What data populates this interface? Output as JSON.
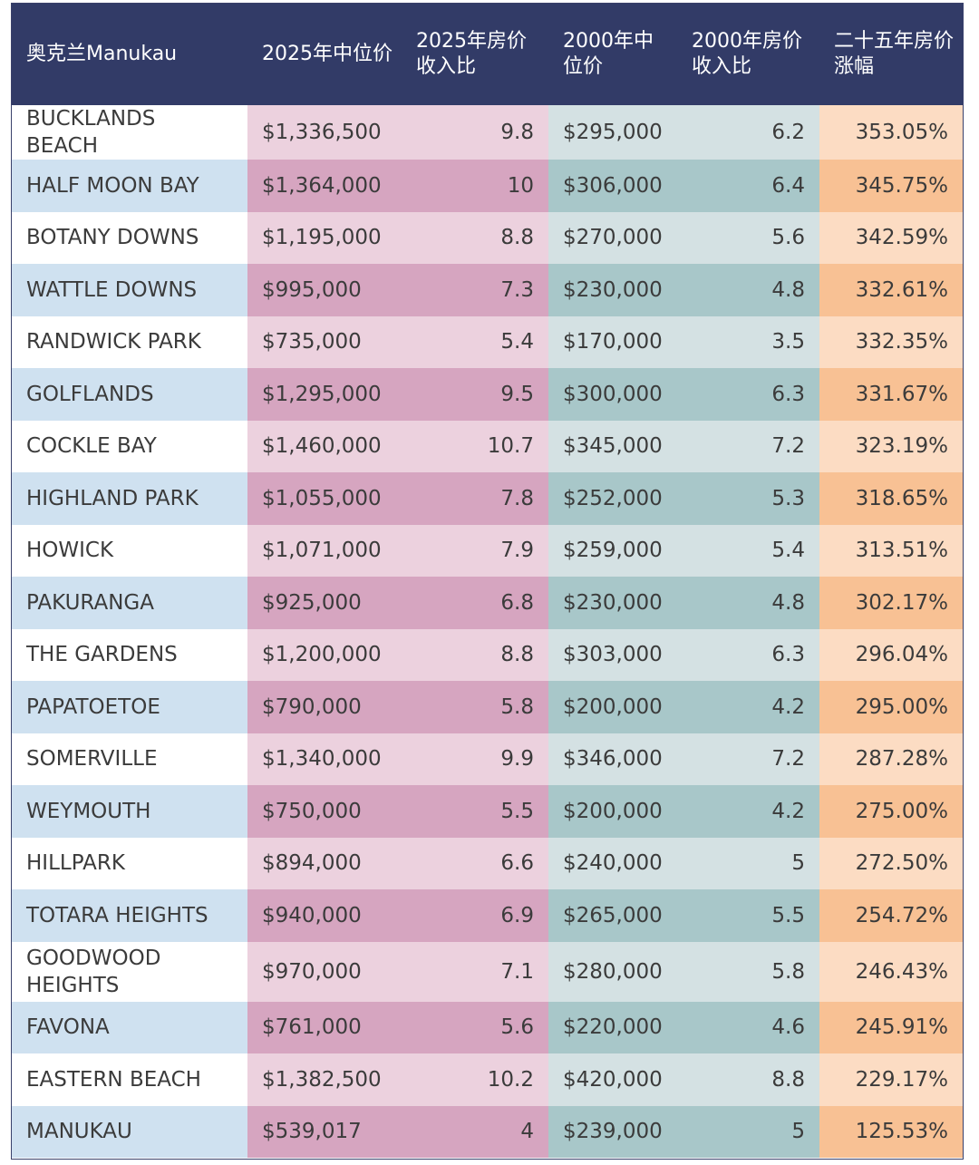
{
  "table": {
    "headers": [
      "奥克兰Manukau",
      "2025年中位价",
      "2025年房价收入比",
      "2000年中位价",
      "2000年房价收入比",
      "二十五年房价涨幅"
    ],
    "rows": [
      [
        "BUCKLANDS BEACH",
        "$1,336,500",
        "9.8",
        "$295,000",
        "6.2",
        "353.05%"
      ],
      [
        "HALF MOON BAY",
        "$1,364,000",
        "10",
        "$306,000",
        "6.4",
        "345.75%"
      ],
      [
        "BOTANY DOWNS",
        "$1,195,000",
        "8.8",
        "$270,000",
        "5.6",
        "342.59%"
      ],
      [
        "WATTLE DOWNS",
        "$995,000",
        "7.3",
        "$230,000",
        "4.8",
        "332.61%"
      ],
      [
        "RANDWICK PARK",
        "$735,000",
        "5.4",
        "$170,000",
        "3.5",
        "332.35%"
      ],
      [
        "GOLFLANDS",
        "$1,295,000",
        "9.5",
        "$300,000",
        "6.3",
        "331.67%"
      ],
      [
        "COCKLE BAY",
        "$1,460,000",
        "10.7",
        "$345,000",
        "7.2",
        "323.19%"
      ],
      [
        "HIGHLAND PARK",
        "$1,055,000",
        "7.8",
        "$252,000",
        "5.3",
        "318.65%"
      ],
      [
        "HOWICK",
        "$1,071,000",
        "7.9",
        "$259,000",
        "5.4",
        "313.51%"
      ],
      [
        "PAKURANGA",
        "$925,000",
        "6.8",
        "$230,000",
        "4.8",
        "302.17%"
      ],
      [
        "THE GARDENS",
        "$1,200,000",
        "8.8",
        "$303,000",
        "6.3",
        "296.04%"
      ],
      [
        "PAPATOETOE",
        "$790,000",
        "5.8",
        "$200,000",
        "4.2",
        "295.00%"
      ],
      [
        "SOMERVILLE",
        "$1,340,000",
        "9.9",
        "$346,000",
        "7.2",
        "287.28%"
      ],
      [
        "WEYMOUTH",
        "$750,000",
        "5.5",
        "$200,000",
        "4.2",
        "275.00%"
      ],
      [
        "HILLPARK",
        "$894,000",
        "6.6",
        "$240,000",
        "5",
        "272.50%"
      ],
      [
        "TOTARA HEIGHTS",
        "$940,000",
        "6.9",
        "$265,000",
        "5.5",
        "254.72%"
      ],
      [
        "GOODWOOD HEIGHTS",
        "$970,000",
        "7.1",
        "$280,000",
        "5.8",
        "246.43%"
      ],
      [
        "FAVONA",
        "$761,000",
        "5.6",
        "$220,000",
        "4.6",
        "245.91%"
      ],
      [
        "EASTERN BEACH",
        "$1,382,500",
        "10.2",
        "$420,000",
        "8.8",
        "229.17%"
      ],
      [
        "MANUKAU",
        "$539,017",
        "4",
        "$239,000",
        "5",
        "125.53%"
      ]
    ]
  },
  "colors": {
    "header_bg": "#323b67",
    "suburb_odd": "#ffffff",
    "suburb_even": "#cfe1f0",
    "price2025_odd": "#ecd1de",
    "price2025_even": "#d6a5c0",
    "price2000_odd": "#d4e1e3",
    "price2000_even": "#a8c7c9",
    "growth_odd": "#fcdcc3",
    "growth_even": "#f8c194"
  }
}
